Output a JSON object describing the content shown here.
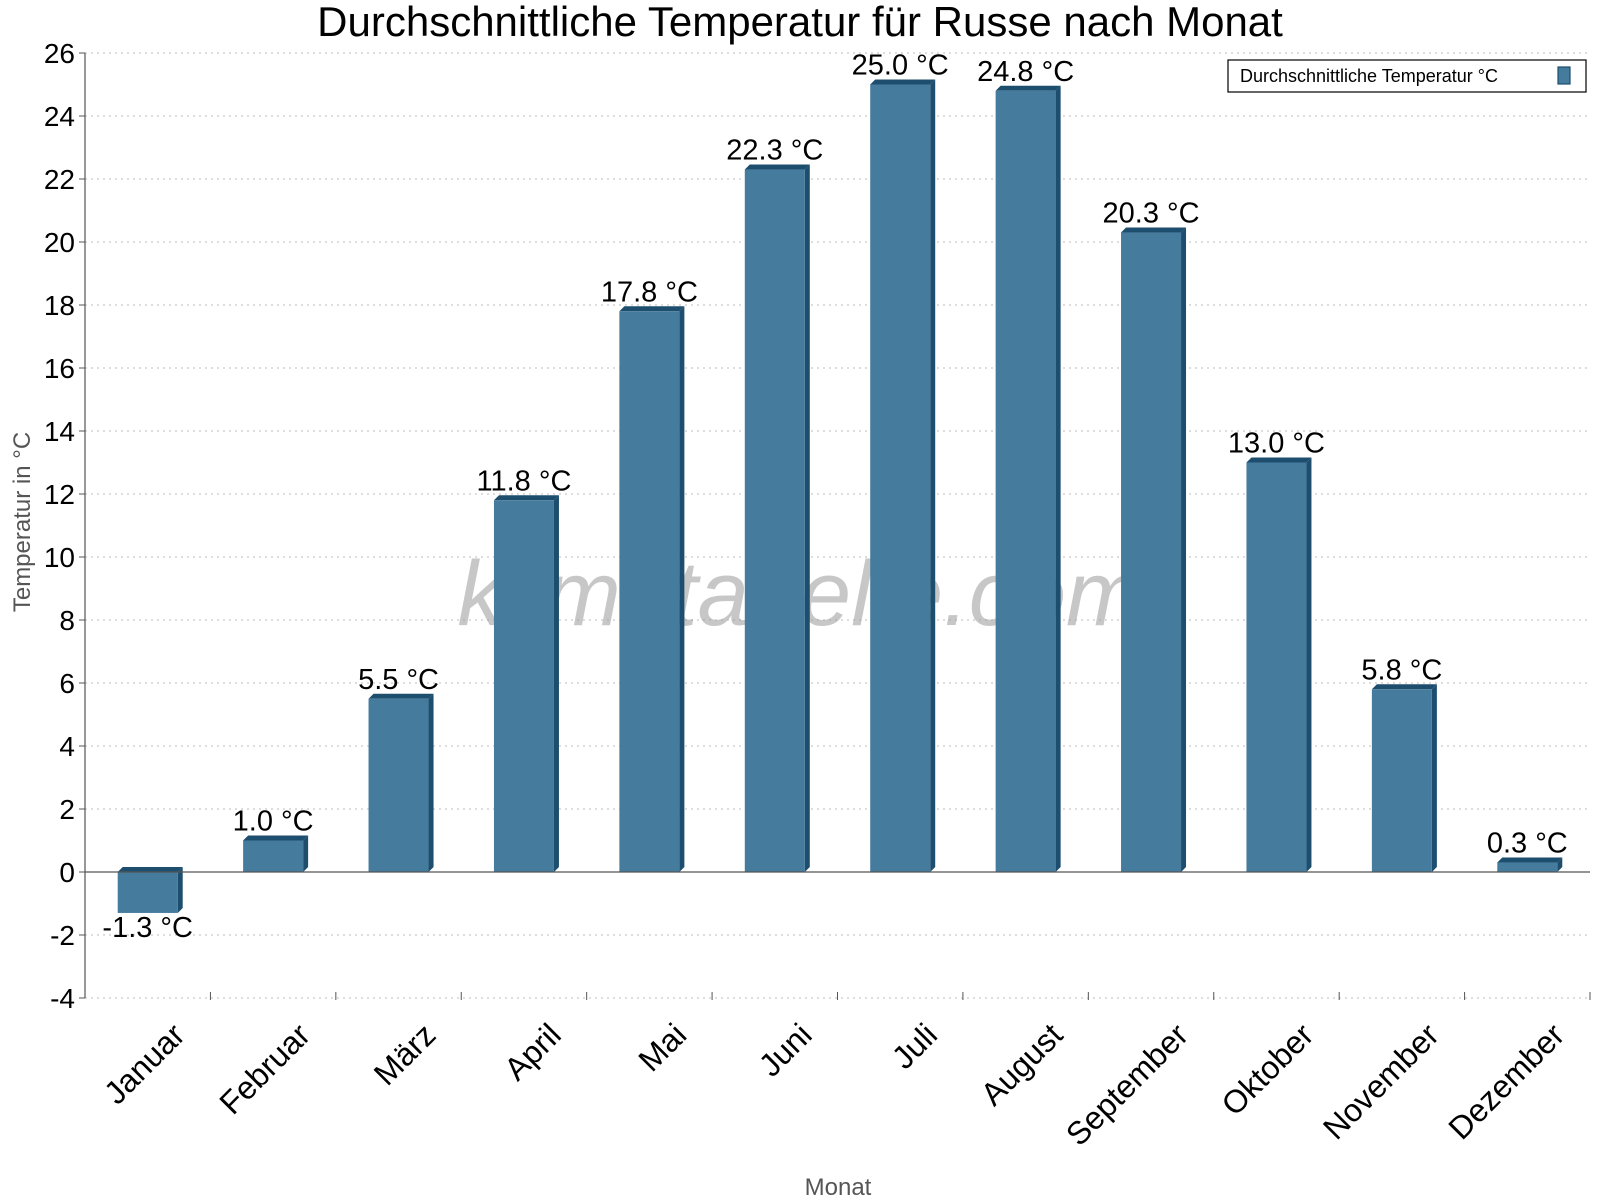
{
  "chart_data": {
    "type": "bar",
    "title": "Durchschnittliche Temperatur für Russe nach Monat",
    "xlabel": "Monat",
    "ylabel": "Temperatur in °C",
    "categories": [
      "Januar",
      "Februar",
      "März",
      "April",
      "Mai",
      "Juni",
      "Juli",
      "August",
      "September",
      "Oktober",
      "November",
      "Dezember"
    ],
    "series": [
      {
        "name": "Durchschnittliche Temperatur °C",
        "values": [
          -1.3,
          1.0,
          5.5,
          11.8,
          17.8,
          22.3,
          25.0,
          24.8,
          20.3,
          13.0,
          5.8,
          0.3
        ],
        "labels": [
          "-1.3 °C",
          "1.0 °C",
          "5.5 °C",
          "11.8 °C",
          "17.8 °C",
          "22.3 °C",
          "25.0 °C",
          "24.8 °C",
          "20.3 °C",
          "13.0 °C",
          "5.8 °C",
          "0.3 °C"
        ],
        "color": "#457b9d",
        "edge_color": "#1d4e6e"
      }
    ],
    "ylim": [
      -4,
      26
    ],
    "yticks": [
      "-4",
      "-2",
      "0",
      "2",
      "4",
      "6",
      "8",
      "10",
      "12",
      "14",
      "16",
      "18",
      "20",
      "22",
      "24",
      "26"
    ],
    "grid": true,
    "legend_position": "top-right",
    "watermark": "klimatabelle.com"
  }
}
